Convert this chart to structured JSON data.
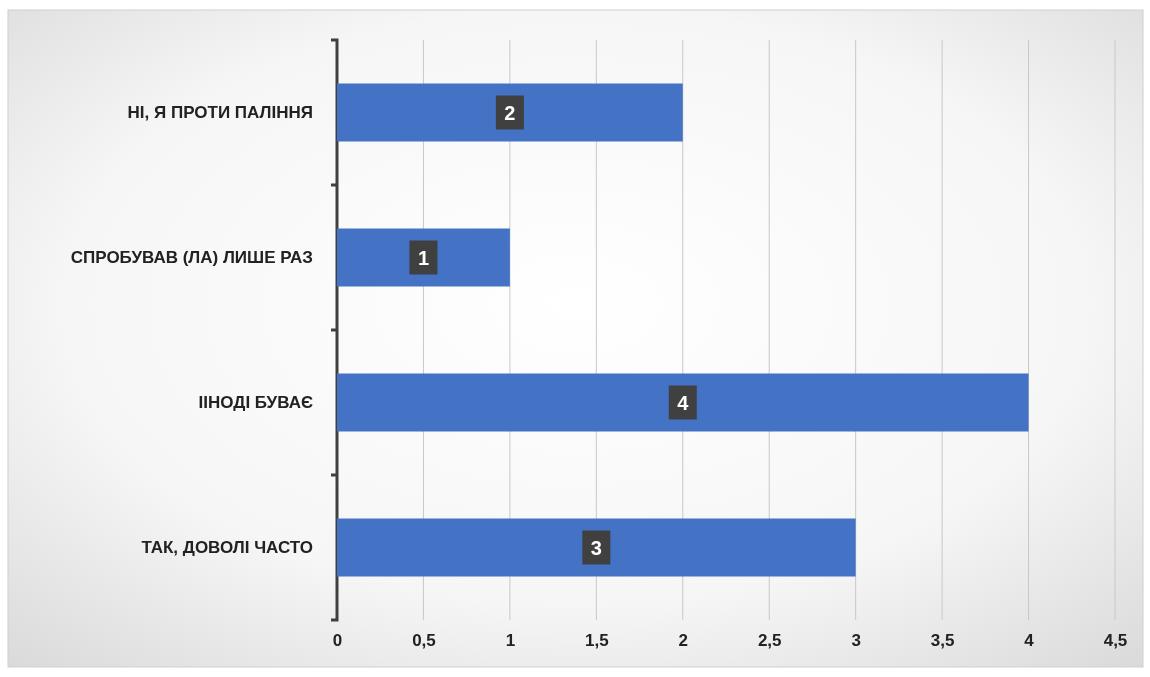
{
  "chart_data": {
    "type": "bar",
    "orientation": "horizontal",
    "categories": [
      "НІ, Я ПРОТИ ПАЛІННЯ",
      "СПРОБУВАВ (ЛА) ЛИШЕ РАЗ",
      "ІІНОДІ БУВАЄ",
      "ТАК, ДОВОЛІ ЧАСТО"
    ],
    "values": [
      2,
      1,
      4,
      3
    ],
    "color": "#4472c4",
    "xlim": [
      0,
      4.5
    ],
    "xticks": [
      0,
      {
        "value": 0.5,
        "label": "0,5"
      },
      1,
      {
        "value": 1.5,
        "label": "1,5"
      },
      2,
      {
        "value": 2.5,
        "label": "2,5"
      },
      3,
      {
        "value": 3.5,
        "label": "3,5"
      },
      4,
      {
        "value": 4.5,
        "label": "4,5"
      }
    ],
    "grid": "x",
    "data_labels": true
  }
}
